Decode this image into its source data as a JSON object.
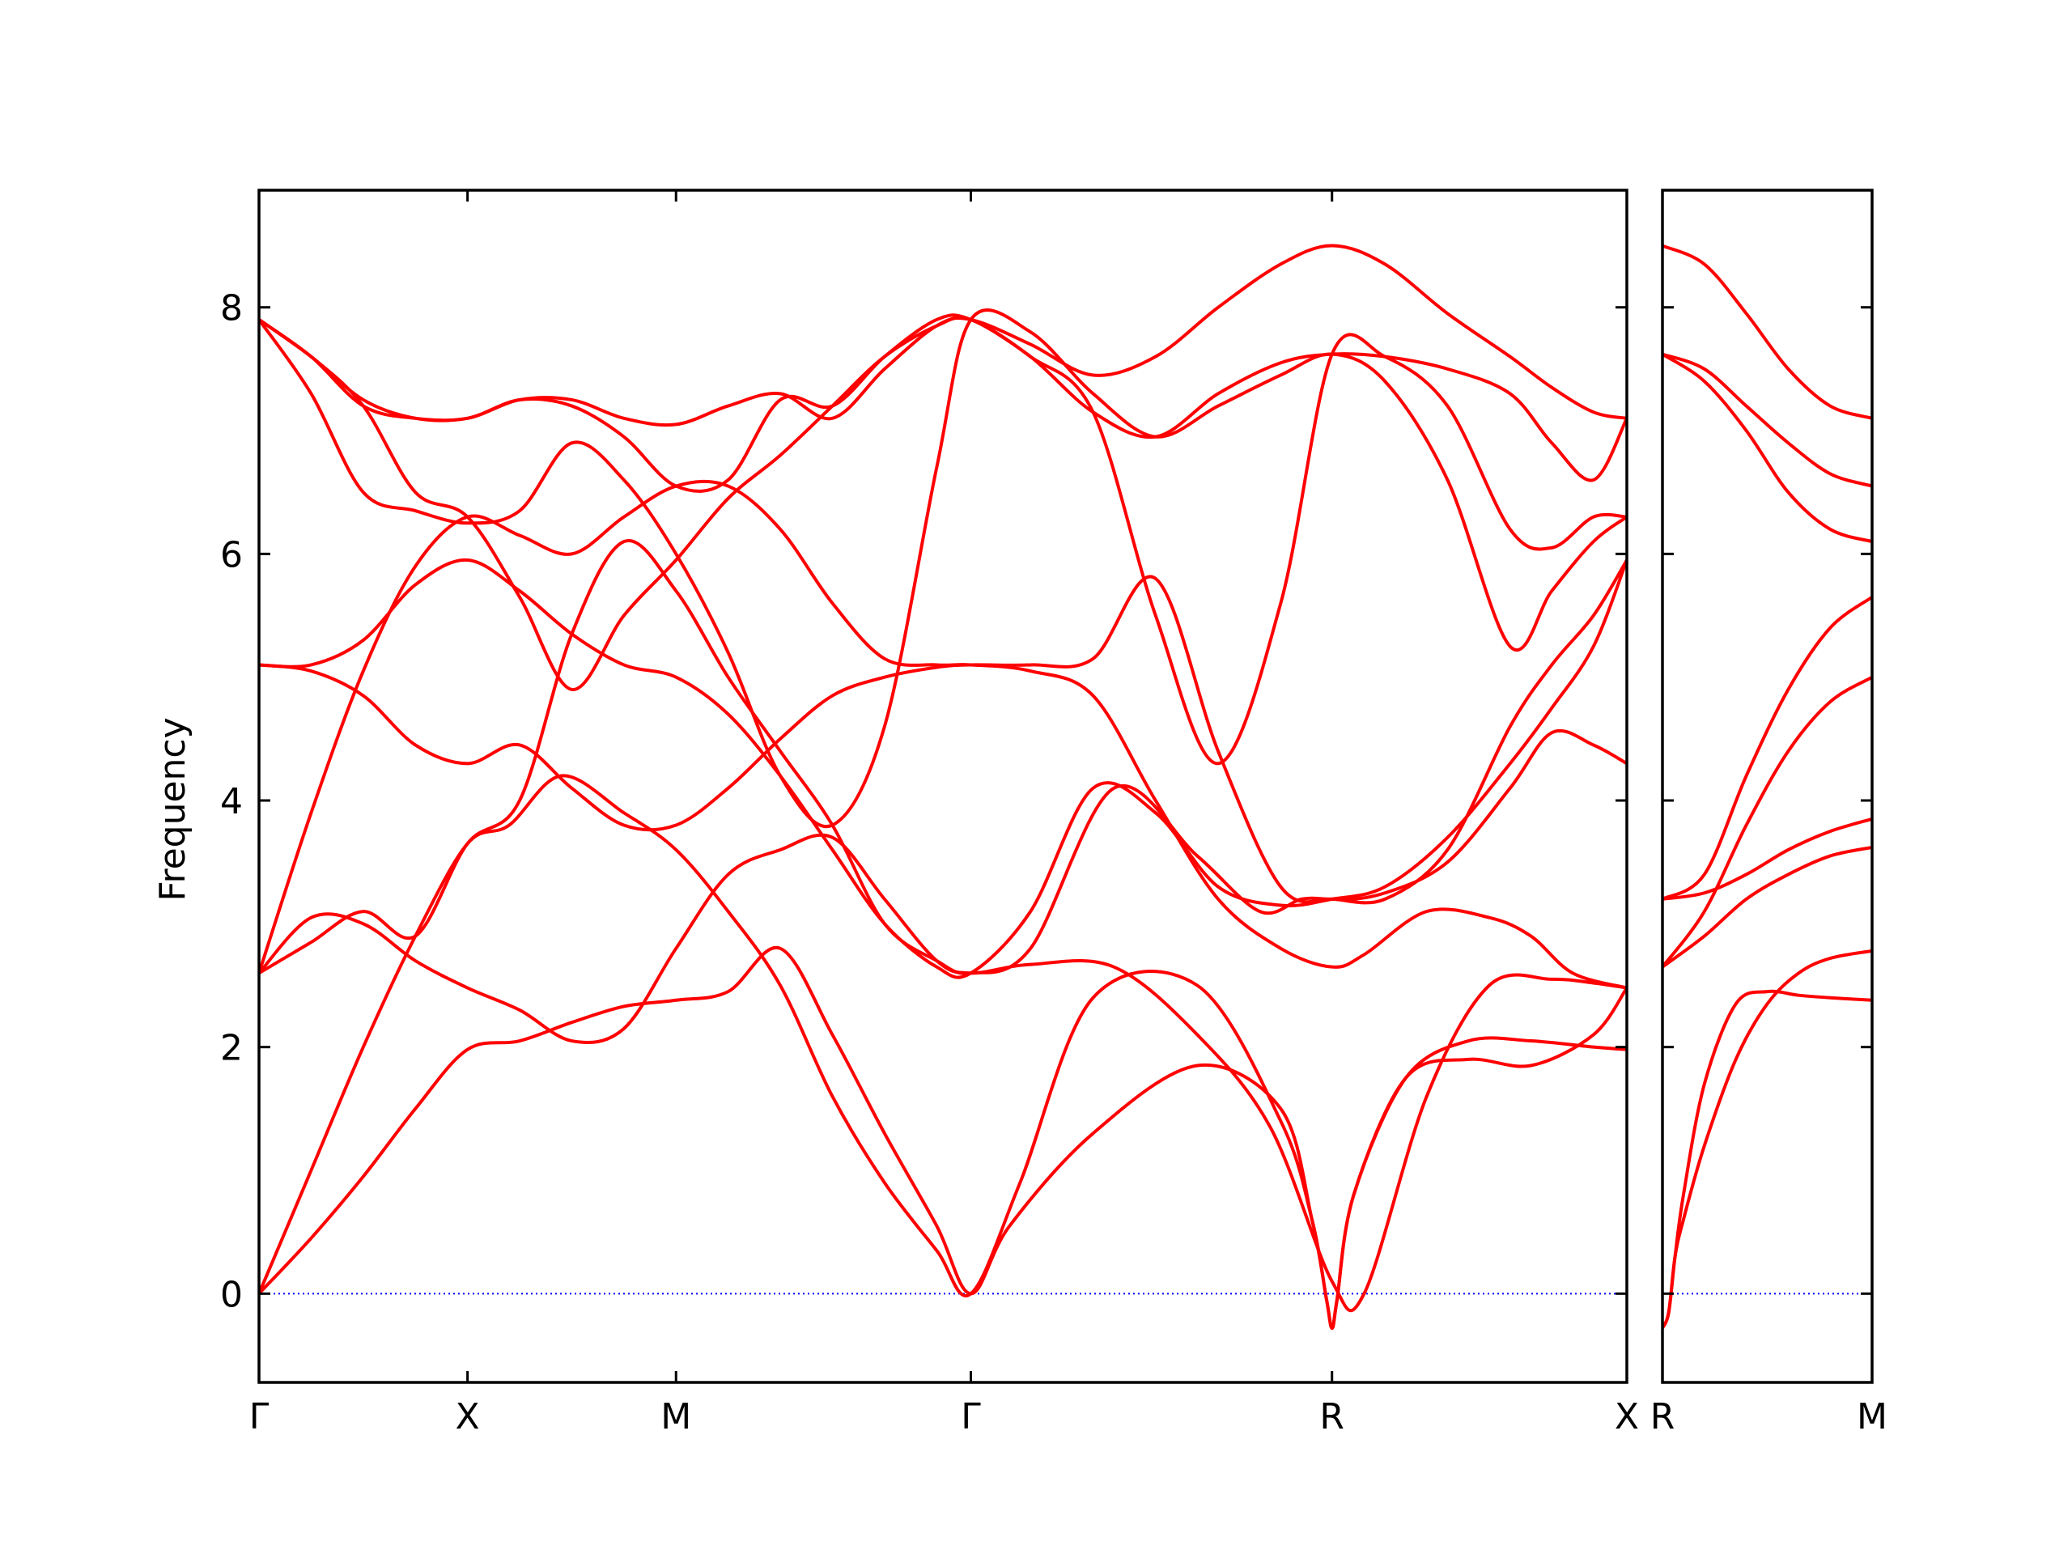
{
  "chart_data": [
    {
      "type": "line",
      "ylabel": "Frequency",
      "xlabel": "",
      "title": "",
      "ylim": [
        -0.72,
        8.95
      ],
      "yticks": [
        0,
        2,
        4,
        6,
        8
      ],
      "xticks": [
        {
          "label": "Γ",
          "pos": 0.0
        },
        {
          "label": "X",
          "pos": 1.0
        },
        {
          "label": "M",
          "pos": 2.0
        },
        {
          "label": "Γ",
          "pos": 3.414
        },
        {
          "label": "R",
          "pos": 5.146
        },
        {
          "label": "X",
          "pos": 6.56
        }
      ],
      "xlim": [
        0.0,
        6.56
      ],
      "line_color": "#ff0000",
      "zero_line_color": "#0000ff",
      "series": [
        {
          "x": [
            0,
            0.25,
            0.5,
            0.75,
            1.0,
            1.25,
            1.5,
            1.75,
            2.0,
            2.25,
            2.5,
            2.75,
            3.0,
            3.25,
            3.414,
            3.6,
            4.0,
            4.5,
            4.9,
            5.05,
            5.12,
            5.146,
            5.17,
            5.25,
            5.5,
            5.8,
            6.1,
            6.4,
            6.56
          ],
          "y": [
            0,
            0.45,
            0.95,
            1.5,
            1.98,
            2.05,
            2.2,
            2.33,
            2.38,
            2.45,
            2.8,
            2.1,
            1.3,
            0.55,
            0,
            0.55,
            1.3,
            1.85,
            1.5,
            0.6,
            -0.05,
            -0.28,
            -0.05,
            0.8,
            1.75,
            1.9,
            1.85,
            2.1,
            2.48
          ]
        },
        {
          "x": [
            0,
            0.25,
            0.5,
            0.75,
            1.0,
            1.2,
            1.45,
            1.75,
            2.0,
            2.25,
            2.5,
            2.75,
            3.0,
            3.25,
            3.414,
            3.65,
            4.0,
            4.5,
            4.9,
            5.05,
            5.12,
            5.146,
            5.17,
            5.25,
            5.5,
            5.8,
            6.1,
            6.4,
            6.56
          ],
          "y": [
            0,
            1.0,
            2.0,
            2.9,
            3.65,
            3.8,
            4.2,
            3.9,
            3.6,
            3.1,
            2.5,
            1.6,
            0.9,
            0.35,
            0,
            0.9,
            2.4,
            2.5,
            1.4,
            0.6,
            -0.05,
            -0.28,
            -0.05,
            0.8,
            1.75,
            2.05,
            2.05,
            2.0,
            1.98
          ]
        },
        {
          "x": [
            0,
            0.25,
            0.5,
            0.75,
            1.0,
            1.25,
            1.5,
            1.75,
            2.0,
            2.25,
            2.5,
            2.75,
            3.0,
            3.25,
            3.414,
            3.7,
            4.1,
            4.5,
            4.85,
            5.146,
            5.3,
            5.6,
            5.9,
            6.2,
            6.4,
            6.56
          ],
          "y": [
            2.6,
            3.05,
            3.0,
            2.7,
            2.48,
            2.3,
            2.05,
            2.15,
            2.8,
            3.4,
            3.6,
            3.7,
            3.2,
            2.7,
            2.6,
            2.67,
            2.65,
            2.1,
            1.35,
            0.1,
            0.0,
            1.6,
            2.5,
            2.55,
            2.52,
            2.48
          ]
        },
        {
          "x": [
            0,
            0.25,
            0.5,
            0.75,
            1.0,
            1.25,
            1.5,
            1.75,
            2.0,
            2.25,
            2.5,
            2.75,
            3.0,
            3.25,
            3.414,
            3.7,
            4.0,
            4.3,
            4.6,
            4.9,
            5.146,
            5.3,
            5.6,
            5.9,
            6.1,
            6.3,
            6.56
          ],
          "y": [
            2.6,
            3.9,
            5.05,
            5.9,
            6.3,
            6.15,
            6.0,
            6.3,
            6.55,
            6.55,
            6.2,
            5.6,
            5.15,
            5.1,
            5.1,
            5.05,
            4.85,
            4.0,
            3.2,
            2.8,
            2.65,
            2.75,
            3.1,
            3.05,
            2.9,
            2.6,
            2.48
          ]
        },
        {
          "x": [
            0,
            0.25,
            0.5,
            0.75,
            1.0,
            1.25,
            1.5,
            1.75,
            2.0,
            2.25,
            2.5,
            2.75,
            3.0,
            3.25,
            3.414,
            3.7,
            4.0,
            4.3,
            4.6,
            4.9,
            5.146,
            5.4,
            5.7,
            6.0,
            6.2,
            6.4,
            6.56
          ],
          "y": [
            5.1,
            5.05,
            4.85,
            4.45,
            4.3,
            4.45,
            4.1,
            3.8,
            3.8,
            4.1,
            4.5,
            4.85,
            5.0,
            5.08,
            5.1,
            5.1,
            5.15,
            5.8,
            4.4,
            3.3,
            3.2,
            3.25,
            3.5,
            4.1,
            4.55,
            4.45,
            4.3
          ]
        },
        {
          "x": [
            0,
            0.25,
            0.5,
            0.75,
            1.0,
            1.25,
            1.5,
            1.75,
            2.0,
            2.25,
            2.5,
            2.75,
            3.0,
            3.25,
            3.414,
            3.7,
            4.0,
            4.3,
            4.6,
            4.9,
            5.146,
            5.4,
            5.7,
            6.0,
            6.2,
            6.4,
            6.56
          ],
          "y": [
            5.1,
            5.1,
            5.3,
            5.75,
            5.95,
            5.7,
            5.35,
            5.1,
            5.0,
            4.7,
            4.2,
            3.6,
            3.0,
            2.65,
            2.6,
            3.1,
            4.1,
            3.9,
            3.3,
            3.15,
            3.2,
            3.3,
            3.7,
            4.3,
            4.75,
            5.25,
            5.95
          ]
        },
        {
          "x": [
            0,
            0.25,
            0.5,
            0.75,
            1.0,
            1.25,
            1.5,
            1.75,
            2.0,
            2.25,
            2.5,
            2.75,
            3.0,
            3.25,
            3.414,
            3.7,
            4.1,
            4.5,
            4.8,
            5.0,
            5.146,
            5.4,
            5.7,
            6.0,
            6.2,
            6.4,
            6.56
          ],
          "y": [
            2.6,
            2.85,
            3.1,
            2.9,
            3.65,
            4.0,
            5.35,
            6.1,
            5.7,
            5.0,
            4.4,
            3.8,
            3.0,
            2.7,
            2.6,
            2.8,
            4.1,
            3.55,
            3.1,
            3.2,
            3.2,
            3.2,
            3.6,
            4.6,
            5.1,
            5.5,
            5.95
          ]
        },
        {
          "x": [
            0,
            0.25,
            0.5,
            0.75,
            1.0,
            1.25,
            1.5,
            1.75,
            2.0,
            2.25,
            2.5,
            2.75,
            3.0,
            3.25,
            3.414,
            3.7,
            4.0,
            4.3,
            4.6,
            4.9,
            5.146,
            5.4,
            5.7,
            6.0,
            6.2,
            6.4,
            6.56
          ],
          "y": [
            7.9,
            7.6,
            7.2,
            6.5,
            6.3,
            5.65,
            4.9,
            5.5,
            5.95,
            6.45,
            6.8,
            7.2,
            7.6,
            7.85,
            7.9,
            7.6,
            7.15,
            5.5,
            4.3,
            5.6,
            7.62,
            7.6,
            7.2,
            6.2,
            6.05,
            6.3,
            6.3
          ]
        },
        {
          "x": [
            0,
            0.25,
            0.5,
            0.75,
            1.0,
            1.25,
            1.5,
            1.75,
            2.0,
            2.25,
            2.5,
            2.75,
            3.0,
            3.25,
            3.414,
            3.7,
            4.0,
            4.3,
            4.6,
            4.9,
            5.146,
            5.4,
            5.7,
            6.0,
            6.2,
            6.4,
            6.56
          ],
          "y": [
            7.9,
            7.3,
            6.5,
            6.35,
            6.25,
            6.35,
            6.9,
            6.6,
            6.0,
            5.2,
            4.2,
            3.8,
            4.6,
            6.7,
            7.9,
            7.8,
            7.3,
            6.95,
            7.2,
            7.45,
            7.62,
            7.4,
            6.6,
            5.25,
            5.7,
            6.1,
            6.3
          ]
        },
        {
          "x": [
            0,
            0.25,
            0.5,
            0.75,
            1.0,
            1.25,
            1.5,
            1.75,
            2.0,
            2.25,
            2.5,
            2.75,
            3.0,
            3.25,
            3.414,
            3.7,
            4.0,
            4.3,
            4.6,
            4.9,
            5.146,
            5.4,
            5.7,
            6.0,
            6.2,
            6.4,
            6.56
          ],
          "y": [
            7.9,
            7.6,
            7.25,
            7.1,
            7.1,
            7.25,
            7.2,
            6.95,
            6.55,
            6.6,
            7.25,
            7.2,
            7.6,
            7.9,
            7.9,
            7.6,
            7.15,
            6.95,
            7.3,
            7.55,
            7.62,
            7.6,
            7.5,
            7.3,
            6.9,
            6.6,
            7.1
          ]
        },
        {
          "x": [
            0,
            0.25,
            0.5,
            0.75,
            1.0,
            1.25,
            1.5,
            1.75,
            2.0,
            2.25,
            2.5,
            2.75,
            3.0,
            3.25,
            3.414,
            3.7,
            4.0,
            4.3,
            4.6,
            4.9,
            5.146,
            5.4,
            5.7,
            6.0,
            6.2,
            6.4,
            6.56
          ],
          "y": [
            7.9,
            7.6,
            7.2,
            7.1,
            7.1,
            7.25,
            7.25,
            7.1,
            7.05,
            7.2,
            7.3,
            7.1,
            7.5,
            7.85,
            7.9,
            7.7,
            7.45,
            7.6,
            8.0,
            8.35,
            8.5,
            8.35,
            7.95,
            7.6,
            7.35,
            7.15,
            7.1
          ]
        }
      ]
    },
    {
      "type": "line",
      "title": "",
      "ylim": [
        -0.72,
        8.95
      ],
      "yticks": [
        0,
        2,
        4,
        6,
        8
      ],
      "xticks": [
        {
          "label": "R",
          "pos": 0.0
        },
        {
          "label": "M",
          "pos": 1.0
        }
      ],
      "xlim": [
        0.0,
        1.0
      ],
      "line_color": "#ff0000",
      "zero_line_color": "#0000ff",
      "series": [
        {
          "x": [
            0,
            0.03,
            0.06,
            0.1,
            0.2,
            0.35,
            0.5,
            0.65,
            0.8,
            1.0
          ],
          "y": [
            -0.28,
            -0.15,
            0.3,
            0.8,
            1.7,
            2.35,
            2.45,
            2.42,
            2.4,
            2.38
          ]
        },
        {
          "x": [
            0,
            0.03,
            0.06,
            0.1,
            0.2,
            0.35,
            0.5,
            0.65,
            0.8,
            1.0
          ],
          "y": [
            -0.28,
            -0.15,
            0.3,
            0.6,
            1.2,
            1.9,
            2.35,
            2.6,
            2.72,
            2.78
          ]
        },
        {
          "x": [
            0,
            0.2,
            0.4,
            0.6,
            0.8,
            1.0
          ],
          "y": [
            2.65,
            2.9,
            3.2,
            3.4,
            3.55,
            3.62
          ]
        },
        {
          "x": [
            0,
            0.2,
            0.4,
            0.6,
            0.8,
            1.0
          ],
          "y": [
            3.2,
            3.25,
            3.4,
            3.6,
            3.75,
            3.85
          ]
        },
        {
          "x": [
            0,
            0.2,
            0.4,
            0.6,
            0.8,
            1.0
          ],
          "y": [
            2.65,
            3.1,
            3.8,
            4.4,
            4.8,
            5.0
          ]
        },
        {
          "x": [
            0,
            0.2,
            0.4,
            0.6,
            0.8,
            1.0
          ],
          "y": [
            3.2,
            3.4,
            4.2,
            4.9,
            5.4,
            5.65
          ]
        },
        {
          "x": [
            0,
            0.2,
            0.4,
            0.6,
            0.8,
            1.0
          ],
          "y": [
            7.62,
            7.4,
            7.0,
            6.5,
            6.2,
            6.1
          ]
        },
        {
          "x": [
            0,
            0.2,
            0.4,
            0.6,
            0.8,
            1.0
          ],
          "y": [
            7.62,
            7.5,
            7.2,
            6.9,
            6.65,
            6.55
          ]
        },
        {
          "x": [
            0,
            0.2,
            0.4,
            0.6,
            0.8,
            1.0
          ],
          "y": [
            8.5,
            8.35,
            7.95,
            7.5,
            7.2,
            7.1
          ]
        }
      ]
    }
  ]
}
